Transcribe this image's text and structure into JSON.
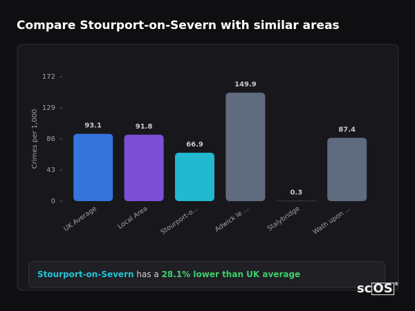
{
  "chart_data": {
    "type": "bar",
    "title": "Compare Stourport-on-Severn with similar areas",
    "y_label": "Crimes per 1,000",
    "categories": [
      "UK Average",
      "Local Area",
      "Stourport-o...",
      "Adwick le ...",
      "Stalybridge",
      "Wath upon ..."
    ],
    "values": [
      93.1,
      91.8,
      66.9,
      149.9,
      0.3,
      87.4
    ],
    "colors": [
      "#3574db",
      "#7b4fd6",
      "#22b8cf",
      "#5f6b7e",
      "#5f6b7e",
      "#5f6b7e"
    ],
    "ylim": [
      0,
      172
    ],
    "yticks": [
      0,
      43,
      86,
      129,
      172
    ]
  },
  "summary": {
    "place": "Stourport-on-Severn",
    "text": "has a",
    "highlight": "28.1% lower than UK average"
  },
  "logo": {
    "text": "sc",
    "box": "OS",
    "mark": "®"
  }
}
